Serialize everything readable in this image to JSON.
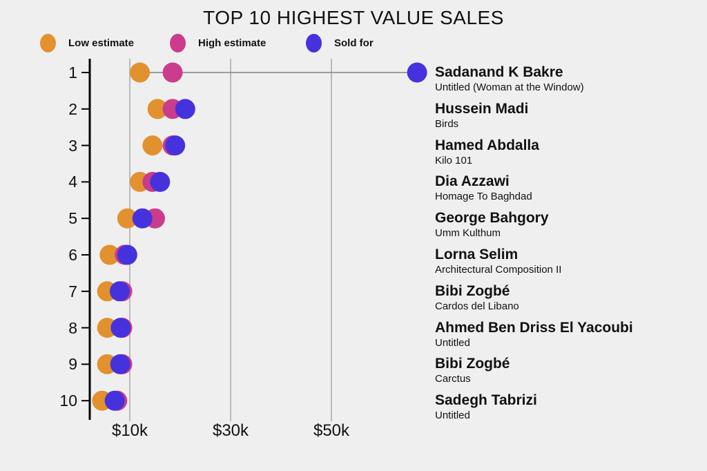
{
  "title": "TOP 10 HIGHEST VALUE SALES",
  "legend": [
    {
      "label": "Low estimate",
      "color": "#e2912f"
    },
    {
      "label": "High estimate",
      "color": "#cb3c8c"
    },
    {
      "label": "Sold for",
      "color": "#4632dc"
    }
  ],
  "colors": {
    "background": "#efefef",
    "low": "#e2912f",
    "high": "#cb3c8c",
    "sold": "#4632dc",
    "gridline": "#b9b9b9",
    "connector": "#808080",
    "axis": "#000000",
    "text": "#111111"
  },
  "chart_data": {
    "type": "scatter",
    "subtype": "horizontal-dot-plot",
    "title": "TOP 10 HIGHEST VALUE SALES",
    "unit": "USD thousands",
    "legend_position": "top-left",
    "grid": "vertical-only",
    "x_axis": {
      "range_k": [
        0,
        70
      ],
      "ticks_k": [
        10,
        30,
        50
      ],
      "tick_labels": [
        "$10k",
        "$30k",
        "$50k"
      ]
    },
    "series_names": [
      "Low estimate",
      "High estimate",
      "Sold for"
    ],
    "rows": [
      {
        "rank": 1,
        "artist": "Sadanand K Bakre",
        "artwork": "Untitled (Woman at the Window)",
        "low": 12,
        "high": 18.5,
        "sold": 67
      },
      {
        "rank": 2,
        "artist": "Hussein Madi",
        "artwork": "Birds",
        "low": 15.5,
        "high": 18.5,
        "sold": 21
      },
      {
        "rank": 3,
        "artist": "Hamed Abdalla",
        "artwork": "Kilo 101",
        "low": 14.5,
        "high": 18.5,
        "sold": 19
      },
      {
        "rank": 4,
        "artist": "Dia Azzawi",
        "artwork": "Homage To Baghdad",
        "low": 12,
        "high": 14.5,
        "sold": 16
      },
      {
        "rank": 5,
        "artist": "George Bahgory",
        "artwork": "Umm Kulthum",
        "low": 9.5,
        "high": 15,
        "sold": 12.5
      },
      {
        "rank": 6,
        "artist": "Lorna Selim",
        "artwork": "Architectural Composition II",
        "low": 6,
        "high": 9,
        "sold": 9.5
      },
      {
        "rank": 7,
        "artist": "Bibi Zogbé",
        "artwork": "Cardos del Libano",
        "low": 5.5,
        "high": 8.5,
        "sold": 8
      },
      {
        "rank": 8,
        "artist": "Ahmed Ben Driss El Yacoubi",
        "artwork": "Untitled",
        "low": 5.5,
        "high": 8.5,
        "sold": 8.2
      },
      {
        "rank": 9,
        "artist": "Bibi Zogbé",
        "artwork": "Carctus",
        "low": 5.5,
        "high": 8.5,
        "sold": 8.1
      },
      {
        "rank": 10,
        "artist": "Sadegh Tabrizi",
        "artwork": "Untitled",
        "low": 4.5,
        "high": 7.5,
        "sold": 7
      }
    ]
  }
}
